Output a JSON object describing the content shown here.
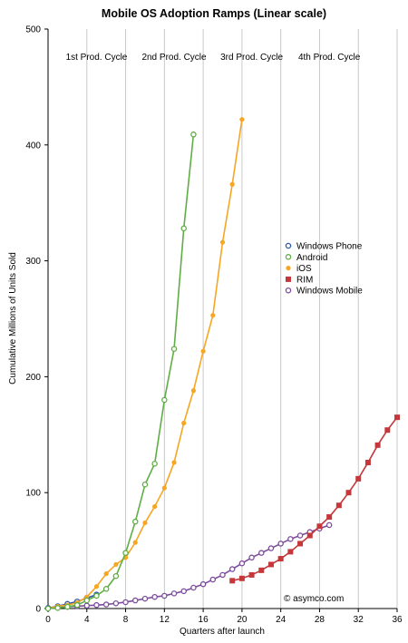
{
  "chart_data": {
    "type": "line",
    "title": "Mobile OS Adoption Ramps (Linear scale)",
    "xlabel": "Quarters after launch",
    "ylabel": "Cumulative Millions of Units Sold",
    "xlim": [
      0,
      36
    ],
    "ylim": [
      0,
      500
    ],
    "xticks": [
      "0",
      "4",
      "8",
      "12",
      "16",
      "20",
      "24",
      "28",
      "32",
      "36"
    ],
    "yticks": [
      "0",
      "100",
      "200",
      "300",
      "400",
      "500"
    ],
    "grid": "vertical",
    "legend_position": "right",
    "credit": "© asymco.com",
    "cycles": [
      "1st Prod. Cycle",
      "2nd Prod. Cycle",
      "3rd Prod. Cycle",
      "4th Prod. Cycle"
    ],
    "series": [
      {
        "name": "Windows Phone",
        "color": "#2b55a6",
        "marker": "circle-open",
        "points": [
          [
            0,
            0.5
          ],
          [
            1,
            2
          ],
          [
            2,
            4
          ],
          [
            3,
            6
          ],
          [
            4,
            9
          ],
          [
            5,
            12
          ]
        ]
      },
      {
        "name": "Android",
        "color": "#5fae45",
        "marker": "circle-open",
        "points": [
          [
            0,
            0
          ],
          [
            1,
            0.5
          ],
          [
            2,
            1.5
          ],
          [
            3,
            3
          ],
          [
            4,
            7
          ],
          [
            5,
            11
          ],
          [
            6,
            17
          ],
          [
            7,
            28
          ],
          [
            8,
            48
          ],
          [
            9,
            75
          ],
          [
            10,
            107
          ],
          [
            11,
            125
          ],
          [
            12,
            180
          ],
          [
            13,
            224
          ],
          [
            14,
            328
          ],
          [
            15,
            409
          ]
        ]
      },
      {
        "name": "iOS",
        "color": "#f6a623",
        "marker": "circle-filled",
        "points": [
          [
            0,
            0
          ],
          [
            1,
            2
          ],
          [
            2,
            3
          ],
          [
            3,
            5
          ],
          [
            4,
            10
          ],
          [
            5,
            19
          ],
          [
            6,
            30
          ],
          [
            7,
            38
          ],
          [
            8,
            44
          ],
          [
            9,
            57
          ],
          [
            10,
            74
          ],
          [
            11,
            88
          ],
          [
            12,
            104
          ],
          [
            13,
            126
          ],
          [
            14,
            160
          ],
          [
            15,
            188
          ],
          [
            16,
            222
          ],
          [
            17,
            253
          ],
          [
            18,
            316
          ],
          [
            19,
            366
          ],
          [
            20,
            422
          ]
        ]
      },
      {
        "name": "RIM",
        "color": "#c4373b",
        "marker": "square-filled",
        "points": [
          [
            19,
            24
          ],
          [
            20,
            26
          ],
          [
            21,
            29
          ],
          [
            22,
            33
          ],
          [
            23,
            38
          ],
          [
            24,
            43
          ],
          [
            25,
            49
          ],
          [
            26,
            56
          ],
          [
            27,
            63
          ],
          [
            28,
            71
          ],
          [
            29,
            79
          ],
          [
            30,
            89
          ],
          [
            31,
            100
          ],
          [
            32,
            112
          ],
          [
            33,
            126
          ],
          [
            34,
            141
          ],
          [
            35,
            154
          ],
          [
            36,
            165
          ]
        ]
      },
      {
        "name": "Windows Mobile",
        "color": "#7d4c9b",
        "marker": "circle-open",
        "points": [
          [
            0,
            0.5
          ],
          [
            1,
            1
          ],
          [
            2,
            1.5
          ],
          [
            3,
            2
          ],
          [
            4,
            2.5
          ],
          [
            5,
            3
          ],
          [
            6,
            3.5
          ],
          [
            7,
            4.5
          ],
          [
            8,
            5.5
          ],
          [
            9,
            7
          ],
          [
            10,
            8.5
          ],
          [
            11,
            10
          ],
          [
            12,
            11
          ],
          [
            13,
            13
          ],
          [
            14,
            15
          ],
          [
            15,
            18
          ],
          [
            16,
            21
          ],
          [
            17,
            25
          ],
          [
            18,
            29
          ],
          [
            19,
            34
          ],
          [
            20,
            39
          ],
          [
            21,
            44
          ],
          [
            22,
            48
          ],
          [
            23,
            52
          ],
          [
            24,
            56
          ],
          [
            25,
            60
          ],
          [
            26,
            63
          ],
          [
            27,
            66
          ],
          [
            28,
            69
          ],
          [
            29,
            72
          ]
        ]
      }
    ]
  }
}
